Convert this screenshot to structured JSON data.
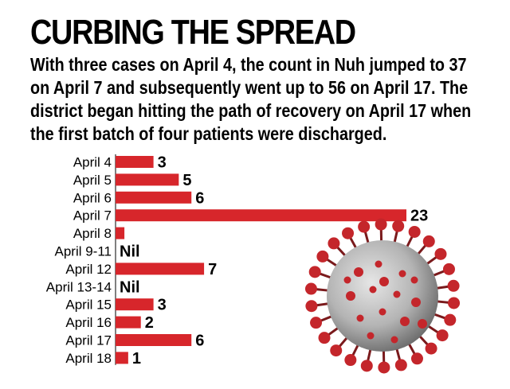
{
  "title": "CURBING THE SPREAD",
  "subtitle": "With three cases on April 4, the count in Nuh jumped to 37 on April 7 and subsequently went up to 56 on April 17. The district began hitting the path of recovery on April 17 when the first batch of four patients were discharged.",
  "colors": {
    "bar": "#d7262b",
    "virus_core": "#b8b8b8",
    "virus_spike": "#c4262b"
  },
  "chart_data": {
    "type": "bar",
    "orientation": "horizontal",
    "title": "CURBING THE SPREAD",
    "categories": [
      "April 4",
      "April 5",
      "April 6",
      "April 7",
      "April 8",
      "April 9-11",
      "April 12",
      "April 13-14",
      "April 15",
      "April 16",
      "April 17",
      "April 18"
    ],
    "values": [
      3,
      5,
      6,
      23,
      0.7,
      0,
      7,
      0,
      3,
      2,
      6,
      1
    ],
    "value_labels": [
      "3",
      "5",
      "6",
      "23",
      "",
      "Nil",
      "7",
      "Nil",
      "3",
      "2",
      "6",
      "1"
    ],
    "xlabel": "",
    "ylabel": "",
    "xlim": [
      0,
      23
    ]
  }
}
